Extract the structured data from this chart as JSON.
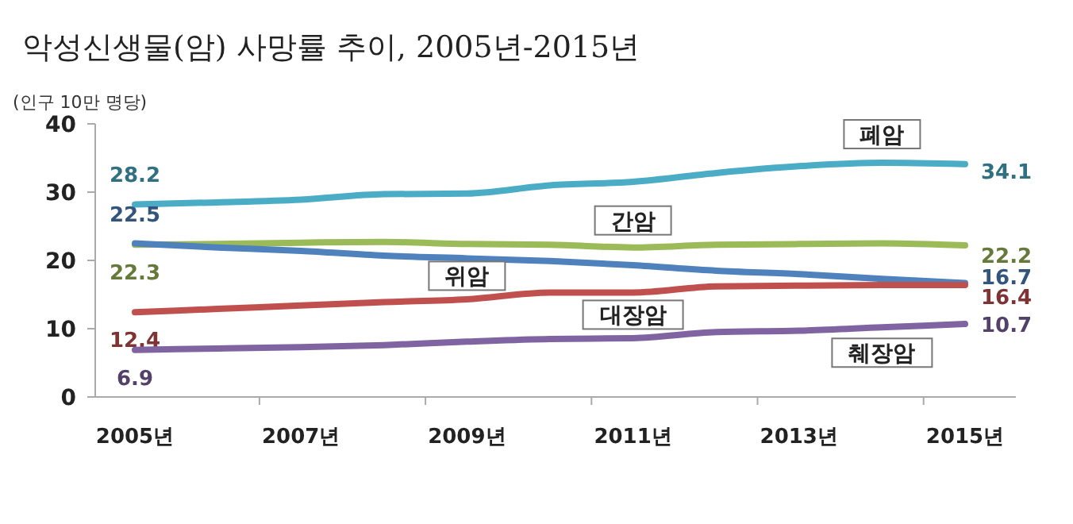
{
  "chart_data": {
    "type": "line",
    "title": "악성신생물(암) 사망률 추이, 2005년-2015년",
    "ylabel": "(인구 10만 명당)",
    "categories": [
      "2005년",
      null,
      "2007년",
      null,
      "2009년",
      null,
      "2011년",
      null,
      "2013년",
      null,
      "2015년"
    ],
    "ylim": [
      0,
      40
    ],
    "yticks": [
      0,
      10,
      20,
      30,
      40
    ],
    "grid": false,
    "legend": false,
    "marker": "none",
    "line_style": "solid",
    "series": [
      {
        "name": "폐암",
        "color": "#4bacc6",
        "values": [
          28.2,
          28.5,
          28.9,
          29.7,
          29.8,
          31.0,
          31.5,
          32.8,
          33.8,
          34.3,
          34.1
        ],
        "value_labels": [
          "28.2",
          null,
          null,
          null,
          null,
          null,
          null,
          null,
          null,
          null,
          "34.1"
        ]
      },
      {
        "name": "간암",
        "color": "#9bbb59",
        "values": [
          22.3,
          22.4,
          22.6,
          22.7,
          22.4,
          22.3,
          21.9,
          22.3,
          22.4,
          22.5,
          22.2
        ],
        "value_labels": [
          "22.3",
          null,
          null,
          null,
          null,
          null,
          null,
          null,
          null,
          null,
          "22.2"
        ]
      },
      {
        "name": "위암",
        "color": "#4f81bd",
        "values": [
          22.5,
          21.9,
          21.4,
          20.7,
          20.3,
          19.9,
          19.3,
          18.5,
          18.0,
          17.3,
          16.7
        ],
        "value_labels": [
          "22.5",
          null,
          null,
          null,
          null,
          null,
          null,
          null,
          null,
          null,
          "16.7"
        ]
      },
      {
        "name": "대장암",
        "color": "#c0504d",
        "values": [
          12.4,
          12.9,
          13.4,
          13.9,
          14.3,
          15.3,
          15.3,
          16.2,
          16.3,
          16.4,
          16.4
        ],
        "value_labels": [
          "12.4",
          null,
          null,
          null,
          null,
          null,
          null,
          null,
          null,
          null,
          "16.4"
        ]
      },
      {
        "name": "췌장암",
        "color": "#8064a2",
        "values": [
          6.9,
          7.1,
          7.3,
          7.6,
          8.1,
          8.5,
          8.6,
          9.5,
          9.7,
          10.2,
          10.7
        ],
        "value_labels": [
          "6.9",
          null,
          null,
          null,
          null,
          null,
          null,
          null,
          null,
          null,
          "10.7"
        ]
      }
    ]
  }
}
